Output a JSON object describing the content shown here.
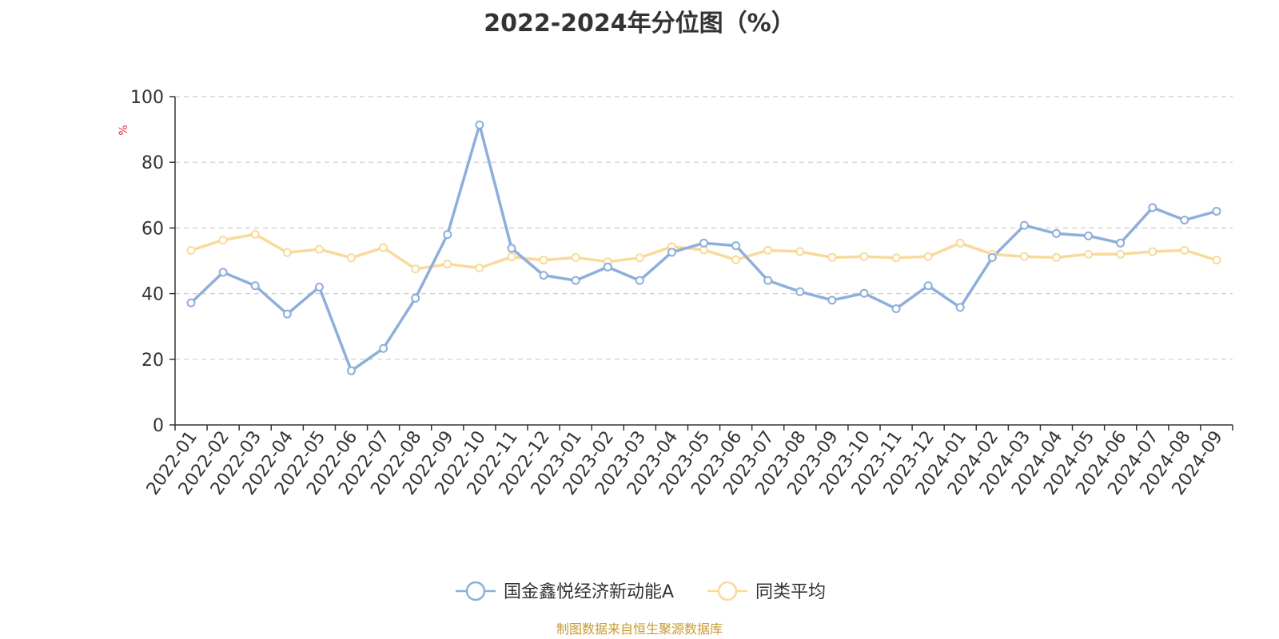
{
  "chart_data": {
    "type": "line",
    "title": "2022-2024年分位图（%）",
    "ylabel": "%",
    "ylim": [
      0,
      100
    ],
    "yticks": [
      0,
      20,
      40,
      60,
      80,
      100
    ],
    "grid": true,
    "legend_position": "bottom",
    "categories": [
      "2022-01",
      "2022-02",
      "2022-03",
      "2022-04",
      "2022-05",
      "2022-06",
      "2022-07",
      "2022-08",
      "2022-09",
      "2022-10",
      "2022-11",
      "2022-12",
      "2023-01",
      "2023-02",
      "2023-03",
      "2023-04",
      "2023-05",
      "2023-06",
      "2023-07",
      "2023-08",
      "2023-09",
      "2023-10",
      "2023-11",
      "2023-12",
      "2024-01",
      "2024-02",
      "2024-03",
      "2024-04",
      "2024-05",
      "2024-06",
      "2024-07",
      "2024-08",
      "2024-09"
    ],
    "series": [
      {
        "name": "国金鑫悦经济新动能A",
        "color": "#8eaedb",
        "values": [
          37.2,
          46.5,
          42.4,
          33.8,
          42.0,
          16.5,
          23.3,
          38.6,
          58.0,
          91.4,
          53.8,
          45.6,
          44.0,
          48.1,
          44.0,
          52.6,
          55.4,
          54.6,
          44.0,
          40.6,
          38.0,
          40.1,
          35.4,
          42.4,
          35.8,
          51.0,
          60.8,
          58.3,
          57.6,
          55.4,
          66.2,
          62.4,
          65.1
        ]
      },
      {
        "name": "同类平均",
        "color": "#fbd99a",
        "values": [
          53.2,
          56.3,
          58.1,
          52.5,
          53.5,
          50.9,
          54.0,
          47.5,
          49.0,
          47.8,
          51.2,
          50.2,
          51.0,
          49.7,
          50.9,
          54.3,
          53.3,
          50.3,
          53.2,
          52.8,
          51.0,
          51.3,
          50.9,
          51.3,
          55.4,
          52.0,
          51.3,
          51.0,
          52.0,
          52.0,
          52.8,
          53.2,
          50.2
        ]
      }
    ]
  },
  "source": "制图数据来自恒生聚源数据库"
}
